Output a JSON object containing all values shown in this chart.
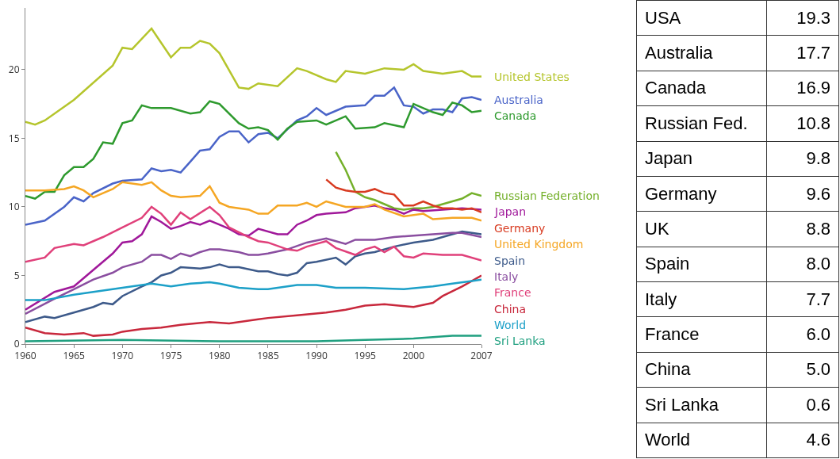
{
  "chart_data": [
    {
      "type": "line",
      "xlim": [
        1960,
        2007
      ],
      "xticks": [
        1960,
        1965,
        1970,
        1975,
        1980,
        1985,
        1990,
        1995,
        2000,
        2007
      ],
      "ylim": [
        0,
        24.5
      ],
      "yticks": [
        0,
        5,
        10,
        15,
        20
      ],
      "grid": false,
      "legend": false,
      "marker": "none",
      "line_style": "solid",
      "series": [
        {
          "name": "United States",
          "color": "#b5c52c",
          "x": [
            1960,
            1961,
            1962,
            1965,
            1969,
            1970,
            1971,
            1973,
            1975,
            1976,
            1977,
            1978,
            1979,
            1980,
            1982,
            1983,
            1984,
            1986,
            1988,
            1989,
            1991,
            1992,
            1993,
            1995,
            1997,
            1999,
            2000,
            2001,
            2003,
            2005,
            2006,
            2007
          ],
          "values": [
            16.2,
            16.0,
            16.3,
            17.8,
            20.3,
            21.6,
            21.5,
            23.0,
            20.9,
            21.6,
            21.6,
            22.1,
            21.9,
            21.2,
            18.7,
            18.6,
            19.0,
            18.8,
            20.1,
            19.9,
            19.3,
            19.1,
            19.9,
            19.7,
            20.1,
            20.0,
            20.4,
            19.9,
            19.7,
            19.9,
            19.5,
            19.5
          ]
        },
        {
          "name": "Australia",
          "color": "#4a64c8",
          "x": [
            1960,
            1962,
            1964,
            1965,
            1966,
            1967,
            1969,
            1970,
            1972,
            1973,
            1974,
            1975,
            1976,
            1977,
            1978,
            1979,
            1980,
            1981,
            1982,
            1983,
            1984,
            1985,
            1986,
            1988,
            1989,
            1990,
            1991,
            1993,
            1995,
            1996,
            1997,
            1998,
            1999,
            2000,
            2001,
            2002,
            2003,
            2004,
            2005,
            2006,
            2007
          ],
          "values": [
            8.7,
            9.0,
            10.0,
            10.7,
            10.4,
            11.0,
            11.7,
            11.9,
            12.0,
            12.8,
            12.6,
            12.7,
            12.5,
            13.3,
            14.1,
            14.2,
            15.1,
            15.5,
            15.5,
            14.7,
            15.3,
            15.4,
            15.0,
            16.3,
            16.6,
            17.2,
            16.7,
            17.3,
            17.4,
            18.1,
            18.1,
            18.7,
            17.4,
            17.3,
            16.8,
            17.1,
            17.1,
            16.9,
            17.9,
            18.0,
            17.8
          ]
        },
        {
          "name": "Canada",
          "color": "#2e9a2e",
          "x": [
            1960,
            1961,
            1962,
            1963,
            1964,
            1965,
            1966,
            1967,
            1968,
            1969,
            1970,
            1971,
            1972,
            1973,
            1975,
            1977,
            1978,
            1979,
            1980,
            1982,
            1983,
            1984,
            1985,
            1986,
            1987,
            1988,
            1990,
            1991,
            1993,
            1994,
            1996,
            1997,
            1999,
            2000,
            2002,
            2003,
            2004,
            2005,
            2006,
            2007
          ],
          "values": [
            10.8,
            10.6,
            11.1,
            11.1,
            12.3,
            12.9,
            12.9,
            13.5,
            14.7,
            14.6,
            16.1,
            16.3,
            17.4,
            17.2,
            17.2,
            16.8,
            16.9,
            17.7,
            17.5,
            16.1,
            15.7,
            15.8,
            15.6,
            14.9,
            15.7,
            16.2,
            16.3,
            16.0,
            16.6,
            15.7,
            15.8,
            16.1,
            15.8,
            17.5,
            16.9,
            16.7,
            17.6,
            17.4,
            16.9,
            17.0
          ]
        },
        {
          "name": "Russian Federation",
          "color": "#74b02a",
          "x": [
            1992,
            1993,
            1994,
            1995,
            1996,
            1997,
            1998,
            1999,
            2000,
            2001,
            2002,
            2003,
            2004,
            2005,
            2006,
            2007
          ],
          "values": [
            14.0,
            12.7,
            11.1,
            10.7,
            10.5,
            10.2,
            9.9,
            9.8,
            9.9,
            9.9,
            10.0,
            10.2,
            10.4,
            10.6,
            11.0,
            10.8
          ]
        },
        {
          "name": "Japan",
          "color": "#a0189a",
          "x": [
            1960,
            1963,
            1965,
            1967,
            1969,
            1970,
            1971,
            1972,
            1973,
            1974,
            1975,
            1976,
            1977,
            1978,
            1979,
            1980,
            1981,
            1982,
            1983,
            1984,
            1986,
            1987,
            1988,
            1989,
            1990,
            1991,
            1993,
            1994,
            1996,
            1997,
            1998,
            1999,
            2000,
            2001,
            2003,
            2005,
            2007
          ],
          "values": [
            2.5,
            3.8,
            4.2,
            5.4,
            6.6,
            7.4,
            7.5,
            8.0,
            9.3,
            8.9,
            8.4,
            8.6,
            8.9,
            8.7,
            9.0,
            8.7,
            8.4,
            8.0,
            7.9,
            8.4,
            8.0,
            8.0,
            8.7,
            9.0,
            9.4,
            9.5,
            9.6,
            9.9,
            10.1,
            9.9,
            9.8,
            9.5,
            9.8,
            9.7,
            9.8,
            9.9,
            9.8
          ]
        },
        {
          "name": "Germany",
          "color": "#d83a20",
          "x": [
            1991,
            1992,
            1993,
            1994,
            1995,
            1996,
            1997,
            1998,
            1999,
            2000,
            2001,
            2002,
            2003,
            2004,
            2005,
            2006,
            2007
          ],
          "values": [
            12.0,
            11.4,
            11.2,
            11.1,
            11.1,
            11.3,
            11.0,
            10.9,
            10.1,
            10.1,
            10.4,
            10.1,
            9.9,
            9.9,
            9.8,
            9.9,
            9.6
          ]
        },
        {
          "name": "United Kingdom",
          "color": "#f5a623",
          "x": [
            1960,
            1962,
            1964,
            1965,
            1966,
            1967,
            1969,
            1970,
            1972,
            1973,
            1974,
            1975,
            1976,
            1978,
            1979,
            1980,
            1981,
            1982,
            1983,
            1984,
            1985,
            1986,
            1988,
            1989,
            1990,
            1991,
            1993,
            1995,
            1996,
            1997,
            1999,
            2001,
            2002,
            2004,
            2006,
            2007
          ],
          "values": [
            11.2,
            11.2,
            11.3,
            11.5,
            11.2,
            10.7,
            11.3,
            11.8,
            11.6,
            11.8,
            11.2,
            10.8,
            10.7,
            10.8,
            11.5,
            10.3,
            10.0,
            9.9,
            9.8,
            9.5,
            9.5,
            10.1,
            10.1,
            10.3,
            10.0,
            10.4,
            10.0,
            10.0,
            10.2,
            9.8,
            9.3,
            9.5,
            9.1,
            9.2,
            9.2,
            9.0
          ]
        },
        {
          "name": "Spain",
          "color": "#3d5a8a",
          "x": [
            1960,
            1962,
            1963,
            1965,
            1967,
            1968,
            1969,
            1970,
            1972,
            1973,
            1974,
            1975,
            1976,
            1978,
            1979,
            1980,
            1981,
            1982,
            1984,
            1985,
            1986,
            1987,
            1988,
            1989,
            1990,
            1992,
            1993,
            1994,
            1995,
            1996,
            1998,
            2000,
            2002,
            2004,
            2005,
            2006,
            2007
          ],
          "values": [
            1.6,
            2.0,
            1.9,
            2.3,
            2.7,
            3.0,
            2.9,
            3.5,
            4.2,
            4.5,
            5.0,
            5.2,
            5.6,
            5.5,
            5.6,
            5.8,
            5.6,
            5.6,
            5.3,
            5.3,
            5.1,
            5.0,
            5.2,
            5.9,
            6.0,
            6.3,
            5.8,
            6.4,
            6.6,
            6.7,
            7.1,
            7.4,
            7.6,
            8.0,
            8.2,
            8.1,
            8.0
          ]
        },
        {
          "name": "Italy",
          "color": "#8a4ea0",
          "x": [
            1960,
            1963,
            1965,
            1967,
            1969,
            1970,
            1972,
            1973,
            1974,
            1975,
            1976,
            1977,
            1978,
            1979,
            1980,
            1982,
            1983,
            1984,
            1985,
            1987,
            1989,
            1991,
            1992,
            1993,
            1994,
            1996,
            1998,
            2000,
            2002,
            2004,
            2005,
            2007
          ],
          "values": [
            2.2,
            3.3,
            4.0,
            4.7,
            5.2,
            5.6,
            6.0,
            6.5,
            6.5,
            6.2,
            6.6,
            6.4,
            6.7,
            6.9,
            6.9,
            6.7,
            6.5,
            6.5,
            6.6,
            6.9,
            7.4,
            7.7,
            7.5,
            7.3,
            7.6,
            7.6,
            7.8,
            7.9,
            8.0,
            8.1,
            8.1,
            7.8
          ]
        },
        {
          "name": "France",
          "color": "#e0407a",
          "x": [
            1960,
            1962,
            1963,
            1965,
            1966,
            1968,
            1970,
            1972,
            1973,
            1974,
            1975,
            1976,
            1977,
            1979,
            1980,
            1981,
            1983,
            1984,
            1985,
            1987,
            1988,
            1989,
            1990,
            1991,
            1992,
            1994,
            1995,
            1996,
            1997,
            1998,
            1999,
            2000,
            2001,
            2003,
            2005,
            2007
          ],
          "values": [
            6.0,
            6.3,
            7.0,
            7.3,
            7.2,
            7.8,
            8.5,
            9.2,
            10.0,
            9.5,
            8.7,
            9.6,
            9.1,
            10.0,
            9.4,
            8.5,
            7.8,
            7.5,
            7.4,
            6.9,
            6.8,
            7.1,
            7.3,
            7.5,
            7.0,
            6.5,
            6.9,
            7.1,
            6.7,
            7.1,
            6.4,
            6.3,
            6.6,
            6.5,
            6.5,
            6.1
          ]
        },
        {
          "name": "China",
          "color": "#c8283c",
          "x": [
            1960,
            1962,
            1964,
            1966,
            1967,
            1969,
            1970,
            1972,
            1974,
            1976,
            1979,
            1981,
            1984,
            1985,
            1988,
            1991,
            1993,
            1995,
            1997,
            2000,
            2002,
            2003,
            2005,
            2007
          ],
          "values": [
            1.2,
            0.8,
            0.7,
            0.8,
            0.6,
            0.7,
            0.9,
            1.1,
            1.2,
            1.4,
            1.6,
            1.5,
            1.8,
            1.9,
            2.1,
            2.3,
            2.5,
            2.8,
            2.9,
            2.7,
            3.0,
            3.5,
            4.2,
            5.0
          ]
        },
        {
          "name": "World",
          "color": "#1ca0c8",
          "x": [
            1960,
            1962,
            1965,
            1968,
            1970,
            1973,
            1975,
            1977,
            1979,
            1980,
            1982,
            1984,
            1985,
            1988,
            1990,
            1992,
            1995,
            1999,
            2002,
            2004,
            2006,
            2007
          ],
          "values": [
            3.2,
            3.2,
            3.6,
            3.9,
            4.1,
            4.4,
            4.2,
            4.4,
            4.5,
            4.4,
            4.1,
            4.0,
            4.0,
            4.3,
            4.3,
            4.1,
            4.1,
            4.0,
            4.2,
            4.4,
            4.6,
            4.7
          ]
        },
        {
          "name": "Sri Lanka",
          "color": "#20a080",
          "x": [
            1960,
            1970,
            1980,
            1990,
            1995,
            2000,
            2004,
            2007
          ],
          "values": [
            0.2,
            0.3,
            0.2,
            0.2,
            0.3,
            0.4,
            0.6,
            0.6
          ]
        }
      ]
    },
    {
      "type": "other",
      "categories": [
        "USA",
        "Australia",
        "Canada",
        "Russian Fed.",
        "Japan",
        "Germany",
        "UK",
        "Spain",
        "Italy",
        "France",
        "China",
        "Sri Lanka",
        "World"
      ],
      "value_labels": [
        "19.3",
        "17.7",
        "16.9",
        "10.8",
        "9.8",
        "9.6",
        "8.8",
        "8.0",
        "7.7",
        "6.0",
        "5.0",
        "0.6",
        "4.6"
      ]
    }
  ]
}
